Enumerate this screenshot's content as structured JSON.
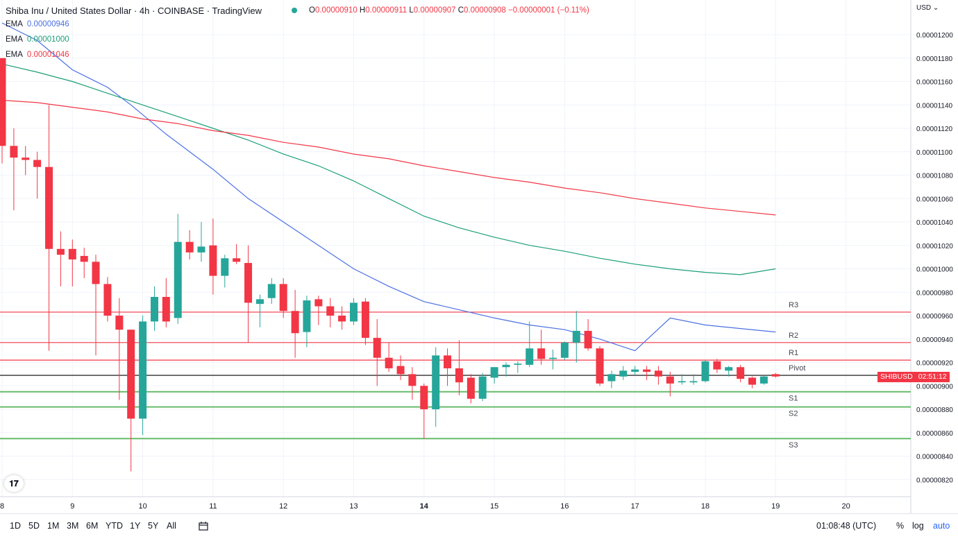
{
  "header": {
    "title": "Shiba Inu / United States Dollar · 4h · COINBASE · TradingView",
    "ohlc": {
      "o_label": "O",
      "o": "0.00000910",
      "h_label": "H",
      "h": "0.00000911",
      "l_label": "L",
      "l": "0.00000907",
      "c_label": "C",
      "c": "0.00000908",
      "change": "−0.00000001 (−0.11%)"
    }
  },
  "indicators": [
    {
      "name": "EMA",
      "value": "0.00000946",
      "color": "#4a6fe3"
    },
    {
      "name": "EMA",
      "value": "0.00001000",
      "color": "#1b9e77"
    },
    {
      "name": "EMA",
      "value": "0.00001046",
      "color": "#f23645"
    }
  ],
  "price_axis": {
    "currency": "USD"
  },
  "last_price_tag": {
    "symbol": "SHIBUSD",
    "countdown": "02:51:12"
  },
  "bottom_bar": {
    "ranges": [
      "1D",
      "5D",
      "1M",
      "3M",
      "6M",
      "YTD",
      "1Y",
      "5Y",
      "All"
    ],
    "clock": "01:08:48 (UTC)",
    "options": [
      "%",
      "log",
      "auto"
    ]
  },
  "colors": {
    "up": "#26a69a",
    "down": "#f23645",
    "ema_fast": "#4a6fe3",
    "ema_mid": "#1b9e77",
    "ema_slow": "#f23645",
    "resistance": "#f23645",
    "support": "#66bb6a",
    "pivot": "#000000"
  },
  "chart_data": {
    "type": "candlestick",
    "y_ticks": [
      "0.00000820",
      "0.00000840",
      "0.00000860",
      "0.00000880",
      "0.00000900",
      "0.00000920",
      "0.00000940",
      "0.00000960",
      "0.00000980",
      "0.00001000",
      "0.00001020",
      "0.00001040",
      "0.00001060",
      "0.00001080",
      "0.00001100",
      "0.00001120",
      "0.00001140",
      "0.00001160",
      "0.00001180",
      "0.00001200"
    ],
    "ylim": [
      8.1e-06,
      1.21e-05
    ],
    "x_ticks": [
      "8",
      "9",
      "10",
      "11",
      "12",
      "13",
      "14",
      "15",
      "16",
      "17",
      "18",
      "19",
      "20"
    ],
    "xlim": [
      8,
      21
    ],
    "candles": [
      {
        "x": 8.0,
        "o": 1.18e-05,
        "h": 1.18e-05,
        "l": 1.09e-05,
        "c": 1.105e-05
      },
      {
        "x": 8.167,
        "o": 1.105e-05,
        "h": 1.12e-05,
        "l": 1.05e-05,
        "c": 1.095e-05
      },
      {
        "x": 8.333,
        "o": 1.095e-05,
        "h": 1.105e-05,
        "l": 1.08e-05,
        "c": 1.093e-05
      },
      {
        "x": 8.5,
        "o": 1.093e-05,
        "h": 1.1e-05,
        "l": 1.06e-05,
        "c": 1.087e-05
      },
      {
        "x": 8.667,
        "o": 1.087e-05,
        "h": 1.14e-05,
        "l": 9.3e-06,
        "c": 1.017e-05
      },
      {
        "x": 8.833,
        "o": 1.017e-05,
        "h": 1.032e-05,
        "l": 9.85e-06,
        "c": 1.012e-05
      },
      {
        "x": 9.0,
        "o": 1.017e-05,
        "h": 1.025e-05,
        "l": 9.85e-06,
        "c": 1.008e-05
      },
      {
        "x": 9.167,
        "o": 1.011e-05,
        "h": 1.018e-05,
        "l": 9.92e-06,
        "c": 1.006e-05
      },
      {
        "x": 9.333,
        "o": 1.006e-05,
        "h": 1.012e-05,
        "l": 9.26e-06,
        "c": 9.87e-06
      },
      {
        "x": 9.5,
        "o": 9.87e-06,
        "h": 9.93e-06,
        "l": 9.55e-06,
        "c": 9.6e-06
      },
      {
        "x": 9.667,
        "o": 9.6e-06,
        "h": 9.75e-06,
        "l": 8.88e-06,
        "c": 9.48e-06
      },
      {
        "x": 9.833,
        "o": 9.48e-06,
        "h": 9.48e-06,
        "l": 8.27e-06,
        "c": 8.72e-06
      },
      {
        "x": 10.0,
        "o": 8.72e-06,
        "h": 9.6e-06,
        "l": 8.58e-06,
        "c": 9.55e-06
      },
      {
        "x": 10.167,
        "o": 9.55e-06,
        "h": 9.85e-06,
        "l": 9.47e-06,
        "c": 9.76e-06
      },
      {
        "x": 10.333,
        "o": 9.76e-06,
        "h": 9.92e-06,
        "l": 9.5e-06,
        "c": 9.55e-06
      },
      {
        "x": 10.5,
        "o": 9.58e-06,
        "h": 1.047e-05,
        "l": 9.53e-06,
        "c": 1.023e-05
      },
      {
        "x": 10.667,
        "o": 1.023e-05,
        "h": 1.033e-05,
        "l": 1.008e-05,
        "c": 1.014e-05
      },
      {
        "x": 10.833,
        "o": 1.014e-05,
        "h": 1.04e-05,
        "l": 1.006e-05,
        "c": 1.019e-05
      },
      {
        "x": 11.0,
        "o": 1.02e-05,
        "h": 1.043e-05,
        "l": 9.78e-06,
        "c": 9.94e-06
      },
      {
        "x": 11.167,
        "o": 9.94e-06,
        "h": 1.012e-05,
        "l": 9.84e-06,
        "c": 1.009e-05
      },
      {
        "x": 11.333,
        "o": 1.009e-05,
        "h": 1.021e-05,
        "l": 1.004e-05,
        "c": 1.006e-05
      },
      {
        "x": 11.5,
        "o": 1.005e-05,
        "h": 1.02e-05,
        "l": 9.37e-06,
        "c": 9.71e-06
      },
      {
        "x": 11.667,
        "o": 9.7e-06,
        "h": 9.78e-06,
        "l": 9.5e-06,
        "c": 9.74e-06
      },
      {
        "x": 11.833,
        "o": 9.75e-06,
        "h": 9.92e-06,
        "l": 9.7e-06,
        "c": 9.87e-06
      },
      {
        "x": 12.0,
        "o": 9.87e-06,
        "h": 9.92e-06,
        "l": 9.58e-06,
        "c": 9.64e-06
      },
      {
        "x": 12.167,
        "o": 9.64e-06,
        "h": 9.82e-06,
        "l": 9.24e-06,
        "c": 9.45e-06
      },
      {
        "x": 12.333,
        "o": 9.46e-06,
        "h": 9.77e-06,
        "l": 9.33e-06,
        "c": 9.73e-06
      },
      {
        "x": 12.5,
        "o": 9.74e-06,
        "h": 9.77e-06,
        "l": 9.52e-06,
        "c": 9.68e-06
      },
      {
        "x": 12.667,
        "o": 9.68e-06,
        "h": 9.75e-06,
        "l": 9.5e-06,
        "c": 9.6e-06
      },
      {
        "x": 12.833,
        "o": 9.6e-06,
        "h": 9.68e-06,
        "l": 9.48e-06,
        "c": 9.55e-06
      },
      {
        "x": 13.0,
        "o": 9.55e-06,
        "h": 9.75e-06,
        "l": 9.52e-06,
        "c": 9.71e-06
      },
      {
        "x": 13.167,
        "o": 9.72e-06,
        "h": 9.75e-06,
        "l": 9.35e-06,
        "c": 9.41e-06
      },
      {
        "x": 13.333,
        "o": 9.41e-06,
        "h": 9.57e-06,
        "l": 9e-06,
        "c": 9.24e-06
      },
      {
        "x": 13.5,
        "o": 9.24e-06,
        "h": 9.37e-06,
        "l": 9.12e-06,
        "c": 9.15e-06
      },
      {
        "x": 13.667,
        "o": 9.17e-06,
        "h": 9.26e-06,
        "l": 9.05e-06,
        "c": 9.1e-06
      },
      {
        "x": 13.833,
        "o": 9.1e-06,
        "h": 9.16e-06,
        "l": 8.88e-06,
        "c": 9e-06
      },
      {
        "x": 14.0,
        "o": 9e-06,
        "h": 9.02e-06,
        "l": 8.55e-06,
        "c": 8.8e-06
      },
      {
        "x": 14.167,
        "o": 8.8e-06,
        "h": 9.33e-06,
        "l": 8.65e-06,
        "c": 9.26e-06
      },
      {
        "x": 14.333,
        "o": 9.26e-06,
        "h": 9.32e-06,
        "l": 9e-06,
        "c": 9.15e-06
      },
      {
        "x": 14.5,
        "o": 9.15e-06,
        "h": 9.39e-06,
        "l": 8.92e-06,
        "c": 9.03e-06
      },
      {
        "x": 14.667,
        "o": 9.07e-06,
        "h": 9.1e-06,
        "l": 8.85e-06,
        "c": 8.89e-06
      },
      {
        "x": 14.833,
        "o": 8.89e-06,
        "h": 9.11e-06,
        "l": 8.87e-06,
        "c": 9.08e-06
      },
      {
        "x": 15.0,
        "o": 9.07e-06,
        "h": 9.16e-06,
        "l": 9.02e-06,
        "c": 9.16e-06
      },
      {
        "x": 15.167,
        "o": 9.16e-06,
        "h": 9.2e-06,
        "l": 9.08e-06,
        "c": 9.18e-06
      },
      {
        "x": 15.333,
        "o": 9.18e-06,
        "h": 9.21e-06,
        "l": 9.11e-06,
        "c": 9.19e-06
      },
      {
        "x": 15.5,
        "o": 9.18e-06,
        "h": 9.55e-06,
        "l": 9.16e-06,
        "c": 9.32e-06
      },
      {
        "x": 15.667,
        "o": 9.32e-06,
        "h": 9.48e-06,
        "l": 9.18e-06,
        "c": 9.23e-06
      },
      {
        "x": 15.833,
        "o": 9.23e-06,
        "h": 9.31e-06,
        "l": 9.14e-06,
        "c": 9.24e-06
      },
      {
        "x": 16.0,
        "o": 9.24e-06,
        "h": 9.38e-06,
        "l": 9.22e-06,
        "c": 9.37e-06
      },
      {
        "x": 16.167,
        "o": 9.37e-06,
        "h": 9.64e-06,
        "l": 9.2e-06,
        "c": 9.47e-06
      },
      {
        "x": 16.333,
        "o": 9.47e-06,
        "h": 9.57e-06,
        "l": 9.3e-06,
        "c": 9.32e-06
      },
      {
        "x": 16.5,
        "o": 9.32e-06,
        "h": 9.34e-06,
        "l": 9e-06,
        "c": 9.02e-06
      },
      {
        "x": 16.667,
        "o": 9.04e-06,
        "h": 9.13e-06,
        "l": 8.98e-06,
        "c": 9.1e-06
      },
      {
        "x": 16.833,
        "o": 9.08e-06,
        "h": 9.17e-06,
        "l": 9.05e-06,
        "c": 9.13e-06
      },
      {
        "x": 17.0,
        "o": 9.12e-06,
        "h": 9.17e-06,
        "l": 9.09e-06,
        "c": 9.14e-06
      },
      {
        "x": 17.167,
        "o": 9.14e-06,
        "h": 9.17e-06,
        "l": 9.05e-06,
        "c": 9.12e-06
      },
      {
        "x": 17.333,
        "o": 9.13e-06,
        "h": 9.17e-06,
        "l": 9.01e-06,
        "c": 9.08e-06
      },
      {
        "x": 17.5,
        "o": 9.08e-06,
        "h": 9.12e-06,
        "l": 8.91e-06,
        "c": 9.02e-06
      },
      {
        "x": 17.667,
        "o": 9.03e-06,
        "h": 9.1e-06,
        "l": 9.01e-06,
        "c": 9.04e-06
      },
      {
        "x": 17.833,
        "o": 9.03e-06,
        "h": 9.1e-06,
        "l": 9.01e-06,
        "c": 9.04e-06
      },
      {
        "x": 18.0,
        "o": 9.04e-06,
        "h": 9.22e-06,
        "l": 9.03e-06,
        "c": 9.21e-06
      },
      {
        "x": 18.167,
        "o": 9.21e-06,
        "h": 9.23e-06,
        "l": 9.11e-06,
        "c": 9.14e-06
      },
      {
        "x": 18.333,
        "o": 9.13e-06,
        "h": 9.17e-06,
        "l": 9.08e-06,
        "c": 9.16e-06
      },
      {
        "x": 18.5,
        "o": 9.16e-06,
        "h": 9.18e-06,
        "l": 9.03e-06,
        "c": 9.06e-06
      },
      {
        "x": 18.667,
        "o": 9.07e-06,
        "h": 9.08e-06,
        "l": 8.98e-06,
        "c": 9.01e-06
      },
      {
        "x": 18.833,
        "o": 9.02e-06,
        "h": 9.09e-06,
        "l": 9.01e-06,
        "c": 9.08e-06
      },
      {
        "x": 19.0,
        "o": 9.1e-06,
        "h": 9.11e-06,
        "l": 9.07e-06,
        "c": 9.08e-06
      }
    ],
    "ema_series": [
      {
        "points": [
          [
            8.0,
            1.21e-05
          ],
          [
            8.5,
            1.195e-05
          ],
          [
            9.0,
            1.17e-05
          ],
          [
            9.5,
            1.155e-05
          ],
          [
            9.833,
            1.14e-05
          ],
          [
            10.333,
            1.115e-05
          ],
          [
            11.0,
            1.085e-05
          ],
          [
            11.5,
            1.06e-05
          ],
          [
            12.0,
            1.04e-05
          ],
          [
            12.5,
            1.02e-05
          ],
          [
            13.0,
            1e-05
          ],
          [
            13.5,
            9.85e-06
          ],
          [
            14.0,
            9.72e-06
          ],
          [
            14.5,
            9.65e-06
          ],
          [
            15.0,
            9.58e-06
          ],
          [
            15.5,
            9.52e-06
          ],
          [
            16.0,
            9.48e-06
          ],
          [
            16.5,
            9.4e-06
          ],
          [
            17.0,
            9.3e-06
          ],
          [
            17.5,
            9.58e-06
          ],
          [
            18.0,
            9.52e-06
          ],
          [
            18.5,
            9.49e-06
          ],
          [
            19.0,
            9.46e-06
          ]
        ],
        "color": "#4a6fe3"
      },
      {
        "points": [
          [
            8.0,
            1.175e-05
          ],
          [
            8.5,
            1.168e-05
          ],
          [
            9.0,
            1.16e-05
          ],
          [
            9.5,
            1.15e-05
          ],
          [
            10.0,
            1.14e-05
          ],
          [
            10.5,
            1.13e-05
          ],
          [
            11.0,
            1.12e-05
          ],
          [
            11.5,
            1.11e-05
          ],
          [
            12.0,
            1.098e-05
          ],
          [
            12.5,
            1.088e-05
          ],
          [
            13.0,
            1.075e-05
          ],
          [
            13.5,
            1.06e-05
          ],
          [
            14.0,
            1.045e-05
          ],
          [
            14.5,
            1.035e-05
          ],
          [
            15.0,
            1.027e-05
          ],
          [
            15.5,
            1.02e-05
          ],
          [
            16.0,
            1.015e-05
          ],
          [
            16.5,
            1.009e-05
          ],
          [
            17.0,
            1.004e-05
          ],
          [
            17.5,
            1e-05
          ],
          [
            18.0,
            9.97e-06
          ],
          [
            18.5,
            9.95e-06
          ],
          [
            19.0,
            1e-05
          ]
        ],
        "color": "#1b9e77"
      },
      {
        "points": [
          [
            8.0,
            1.144e-05
          ],
          [
            8.5,
            1.142e-05
          ],
          [
            9.0,
            1.138e-05
          ],
          [
            9.5,
            1.134e-05
          ],
          [
            10.0,
            1.128e-05
          ],
          [
            10.5,
            1.124e-05
          ],
          [
            11.0,
            1.118e-05
          ],
          [
            11.5,
            1.114e-05
          ],
          [
            12.0,
            1.108e-05
          ],
          [
            12.5,
            1.104e-05
          ],
          [
            13.0,
            1.098e-05
          ],
          [
            13.5,
            1.094e-05
          ],
          [
            14.0,
            1.088e-05
          ],
          [
            14.5,
            1.083e-05
          ],
          [
            15.0,
            1.078e-05
          ],
          [
            15.5,
            1.074e-05
          ],
          [
            16.0,
            1.069e-05
          ],
          [
            16.5,
            1.065e-05
          ],
          [
            17.0,
            1.06e-05
          ],
          [
            17.5,
            1.056e-05
          ],
          [
            18.0,
            1.052e-05
          ],
          [
            18.5,
            1.049e-05
          ],
          [
            19.0,
            1.046e-05
          ]
        ],
        "color": "#f23645"
      }
    ],
    "levels": [
      {
        "label": "R3",
        "value": 9.63e-06,
        "kind": "resistance"
      },
      {
        "label": "R2",
        "value": 9.37e-06,
        "kind": "resistance"
      },
      {
        "label": "R1",
        "value": 9.22e-06,
        "kind": "resistance"
      },
      {
        "label": "Pivot",
        "value": 9.09e-06,
        "kind": "pivot"
      },
      {
        "label": "S1",
        "value": 8.95e-06,
        "kind": "support"
      },
      {
        "label": "S2",
        "value": 8.82e-06,
        "kind": "support"
      },
      {
        "label": "S3",
        "value": 8.55e-06,
        "kind": "support"
      }
    ]
  }
}
